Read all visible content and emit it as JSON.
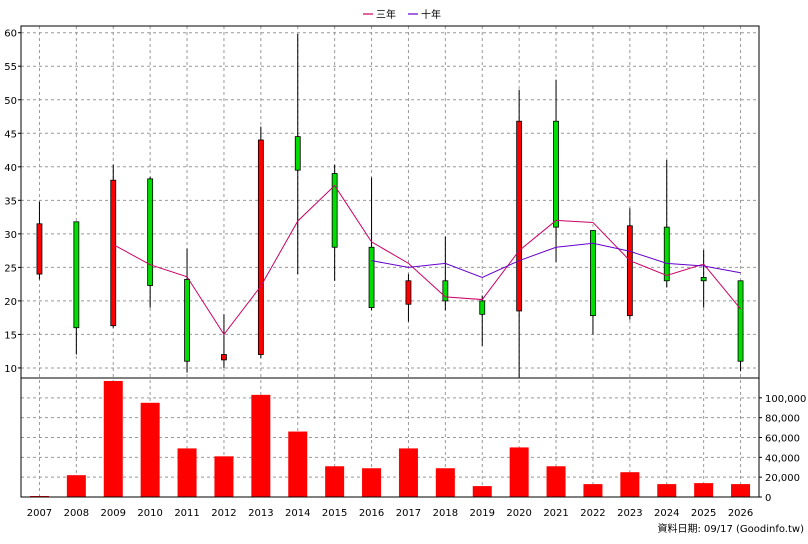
{
  "chart_data": {
    "type": "candlestick+bar",
    "legend": [
      {
        "name": "三年",
        "color": "#cc0066"
      },
      {
        "name": "十年",
        "color": "#6600cc"
      }
    ],
    "footer": "資料日期: 09/17  (Goodinfo.tw)",
    "categories": [
      "2007",
      "2008",
      "2009",
      "2010",
      "2011",
      "2012",
      "2013",
      "2014",
      "2015",
      "2016",
      "2017",
      "2018",
      "2019",
      "2020",
      "2021",
      "2022",
      "2023",
      "2024",
      "2025",
      "2026"
    ],
    "price_axis": {
      "ylim": [
        8.5,
        61
      ],
      "ticks": [
        10,
        15,
        20,
        25,
        30,
        35,
        40,
        45,
        50,
        55,
        60
      ]
    },
    "volume_axis": {
      "ylim": [
        0,
        120000
      ],
      "ticks": [
        0,
        20000,
        40000,
        60000,
        80000,
        100000
      ],
      "tick_labels": [
        "0",
        "20,000",
        "40,000",
        "60,000",
        "80,000",
        "100,000"
      ]
    },
    "candles": [
      {
        "open": 24.0,
        "close": 31.5,
        "high": 34.8,
        "low": 23.2
      },
      {
        "open": 31.8,
        "close": 16.0,
        "high": 31.8,
        "low": 12.0
      },
      {
        "open": 16.3,
        "close": 38.0,
        "high": 40.3,
        "low": 16.0
      },
      {
        "open": 38.2,
        "close": 22.3,
        "high": 38.5,
        "low": 19.0
      },
      {
        "open": 23.2,
        "close": 11.0,
        "high": 27.8,
        "low": 9.3
      },
      {
        "open": 11.2,
        "close": 12.0,
        "high": 18.0,
        "low": 10.0
      },
      {
        "open": 12.0,
        "close": 44.0,
        "high": 46.0,
        "low": 11.5
      },
      {
        "open": 44.5,
        "close": 39.5,
        "high": 59.8,
        "low": 24.0
      },
      {
        "open": 39.0,
        "close": 28.0,
        "high": 40.3,
        "low": 23.0
      },
      {
        "open": 28.0,
        "close": 19.0,
        "high": 38.4,
        "low": 18.6
      },
      {
        "open": 19.5,
        "close": 23.0,
        "high": 24.0,
        "low": 16.9
      },
      {
        "open": 23.0,
        "close": 20.0,
        "high": 29.6,
        "low": 18.6
      },
      {
        "open": 20.0,
        "close": 18.0,
        "high": 20.8,
        "low": 13.3
      },
      {
        "open": 18.5,
        "close": 46.8,
        "high": 51.5,
        "low": 8.6
      },
      {
        "open": 46.8,
        "close": 31.0,
        "high": 53.0,
        "low": 25.8
      },
      {
        "open": 30.5,
        "close": 17.8,
        "high": 30.5,
        "low": 15.0
      },
      {
        "open": 17.8,
        "close": 31.2,
        "high": 33.8,
        "low": 17.2
      },
      {
        "open": 31.0,
        "close": 23.0,
        "high": 41.0,
        "low": 22.0
      },
      {
        "open": 23.5,
        "close": 23.0,
        "high": 27.6,
        "low": 19.0
      },
      {
        "open": 23.0,
        "close": 11.0,
        "high": 23.0,
        "low": 9.5
      }
    ],
    "series": [
      {
        "name": "三年",
        "color": "#cc0066",
        "values": [
          null,
          null,
          28.4,
          25.4,
          23.6,
          15.0,
          22.2,
          31.9,
          37.2,
          28.8,
          25.6,
          20.6,
          20.2,
          27.5,
          32.0,
          31.7,
          26.0,
          23.8,
          25.5,
          18.8
        ]
      },
      {
        "name": "十年",
        "color": "#6600cc",
        "values": [
          null,
          null,
          null,
          null,
          null,
          null,
          null,
          null,
          null,
          26.0,
          25.0,
          25.6,
          23.5,
          26.0,
          28.0,
          28.6,
          27.4,
          25.6,
          25.2,
          24.2
        ]
      }
    ],
    "volumes": [
      1000,
      22000,
      117000,
      95000,
      49000,
      41000,
      103000,
      66000,
      31000,
      29000,
      49000,
      29000,
      11000,
      50000,
      31000,
      13000,
      25000,
      13000,
      14000,
      13000
    ],
    "colors": {
      "up": "#ff0000",
      "down": "#00dd00",
      "volume": "#ff0000",
      "grid": "#999999"
    }
  }
}
